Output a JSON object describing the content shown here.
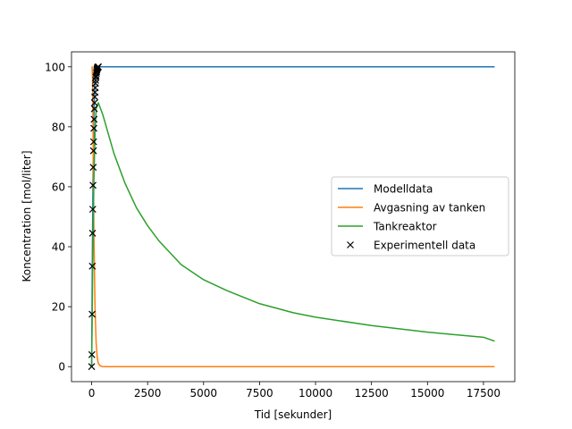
{
  "chart_data": {
    "type": "line",
    "xlabel": "Tid [sekunder]",
    "ylabel": "Koncentration [mol/liter]",
    "xlim": [
      -900,
      18900
    ],
    "ylim": [
      -5,
      105
    ],
    "xticks": [
      0,
      2500,
      5000,
      7500,
      10000,
      12500,
      15000,
      17500
    ],
    "xtick_labels": [
      "0",
      "2500",
      "5000",
      "7500",
      "10000",
      "12500",
      "15000",
      "17500"
    ],
    "yticks": [
      0,
      20,
      40,
      60,
      80,
      100
    ],
    "ytick_labels": [
      "0",
      "20",
      "40",
      "60",
      "80",
      "100"
    ],
    "grid": false,
    "legend_position": "center-right",
    "series": [
      {
        "name": "Modelldata",
        "kind": "line",
        "color": "#1f77b4",
        "x": [
          0,
          30,
          60,
          100,
          150,
          200,
          300,
          400,
          1000,
          2000,
          4000,
          6000,
          8000,
          10000,
          12000,
          14000,
          16000,
          18000
        ],
        "y": [
          0,
          35,
          62,
          84,
          95,
          99,
          100,
          100,
          100,
          100,
          100,
          100,
          100,
          100,
          100,
          100,
          100,
          100
        ]
      },
      {
        "name": "Avgasning av tanken",
        "kind": "line",
        "color": "#ff7f0e",
        "x": [
          0,
          20,
          40,
          60,
          80,
          100,
          150,
          200,
          250,
          300,
          400,
          500,
          1000,
          5000,
          10000,
          15000,
          18000
        ],
        "y": [
          100,
          100,
          96,
          82,
          62,
          45,
          20,
          8,
          3,
          1,
          0.2,
          0,
          0,
          0,
          0,
          0,
          0
        ]
      },
      {
        "name": "Tankreaktor",
        "kind": "line",
        "color": "#2ca02c",
        "x": [
          0,
          50,
          100,
          150,
          200,
          300,
          500,
          1000,
          1500,
          2000,
          2500,
          3000,
          4000,
          5000,
          6000,
          7500,
          9000,
          10000,
          12500,
          15000,
          17500,
          18000
        ],
        "y": [
          0,
          35,
          62,
          78,
          86,
          88,
          84,
          71,
          61,
          53,
          47,
          42,
          34,
          29,
          25.5,
          21,
          18,
          16.5,
          13.7,
          11.5,
          9.8,
          8.5
        ]
      },
      {
        "name": "Experimentell data",
        "kind": "marker",
        "color": "#000000",
        "x": [
          0,
          10,
          20,
          30,
          40,
          50,
          60,
          70,
          80,
          90,
          100,
          110,
          120,
          130,
          140,
          150,
          160,
          170,
          180,
          190,
          200,
          210,
          220,
          230,
          240,
          250,
          260,
          270,
          280,
          290,
          300
        ],
        "y": [
          0,
          4,
          17.5,
          33.5,
          44.5,
          52.5,
          60.5,
          66.5,
          72,
          75,
          79.5,
          82.5,
          86,
          88,
          90,
          91.5,
          93,
          94.5,
          95.5,
          96.5,
          97,
          97.8,
          98.3,
          98.8,
          99.2,
          99.5,
          99.7,
          99.8,
          99.9,
          100,
          100
        ]
      }
    ]
  }
}
